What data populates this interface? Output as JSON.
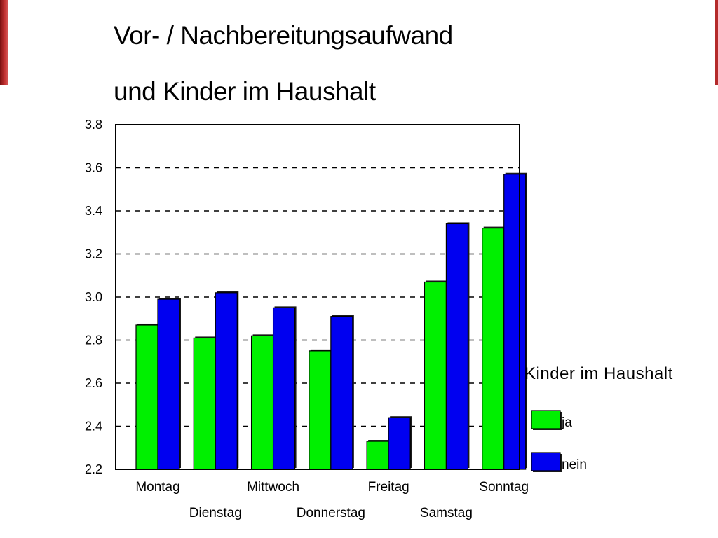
{
  "chart_data": {
    "type": "bar",
    "title_lines": [
      "Vor- / Nachbereitungsaufwand",
      "und Kinder im Haushalt"
    ],
    "categories": [
      "Montag",
      "Dienstag",
      "Mittwoch",
      "Donnerstag",
      "Freitag",
      "Samstag",
      "Sonntag"
    ],
    "series": [
      {
        "name": "ja",
        "color": "#00f000",
        "values": [
          2.87,
          2.81,
          2.82,
          2.75,
          2.33,
          3.07,
          3.32
        ]
      },
      {
        "name": "nein",
        "color": "#0000f0",
        "values": [
          2.99,
          3.02,
          2.95,
          2.91,
          2.44,
          3.34,
          3.57
        ]
      }
    ],
    "legend_title": "Kinder im Haushalt",
    "legend_position": "right",
    "ylim": [
      2.2,
      3.8
    ],
    "yticks": [
      "2.2",
      "2.4",
      "2.6",
      "2.8",
      "3.0",
      "3.2",
      "3.4",
      "3.6",
      "3.8"
    ],
    "grid": "horizontal dashed",
    "xlabel": "",
    "ylabel": ""
  }
}
